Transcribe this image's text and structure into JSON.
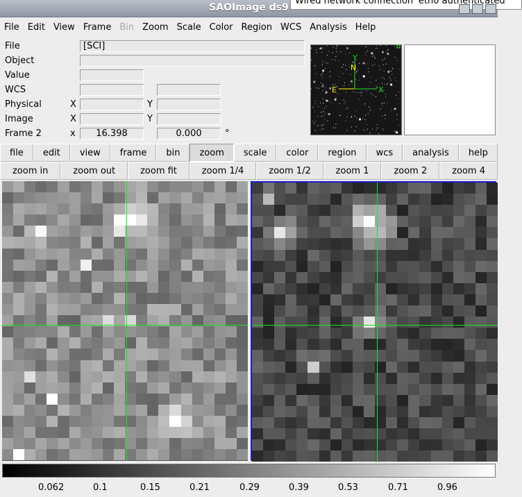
{
  "window": {
    "title": "SAOImage ds9",
    "notification": "Wired network connection 'eth0 authenticated"
  },
  "menubar": [
    "File",
    "Edit",
    "View",
    "Frame",
    "Bin",
    "Zoom",
    "Scale",
    "Color",
    "Region",
    "WCS",
    "Analysis",
    "Help"
  ],
  "menubar_disabled": [
    "Bin"
  ],
  "info": {
    "file_label": "File",
    "file_value": "[SCI]",
    "object_label": "Object",
    "object_value": "",
    "value_label": "Value",
    "value_value": "",
    "wcs_label": "WCS",
    "physical_label": "Physical",
    "image_label": "Image",
    "frame_label": "Frame 2",
    "x_label": "X",
    "y_label": "Y",
    "x_small_label": "x",
    "zoom_value": "16.398",
    "angle_value": "0.000",
    "degree_symbol": "°"
  },
  "panner": {
    "north_label": "N",
    "east_label": "E",
    "y_label": "Y",
    "x_label": "X"
  },
  "buttonbar_main": [
    "file",
    "edit",
    "view",
    "frame",
    "bin",
    "zoom",
    "scale",
    "color",
    "region",
    "wcs",
    "analysis",
    "help"
  ],
  "buttonbar_main_active": "zoom",
  "buttonbar_zoom": [
    "zoom in",
    "zoom out",
    "zoom fit",
    "zoom 1/4",
    "zoom 1/2",
    "zoom 1",
    "zoom 2",
    "zoom 4"
  ],
  "colorbar_ticks": [
    "0.062",
    "0.1",
    "0.15",
    "0.21",
    "0.29",
    "0.39",
    "0.53",
    "0.71",
    "0.96"
  ],
  "colors": {
    "crosshair": "#19e619",
    "active_frame_border": "#1a1acc",
    "panner_marker": "#19e619",
    "panner_arrow": "#ffff00"
  }
}
